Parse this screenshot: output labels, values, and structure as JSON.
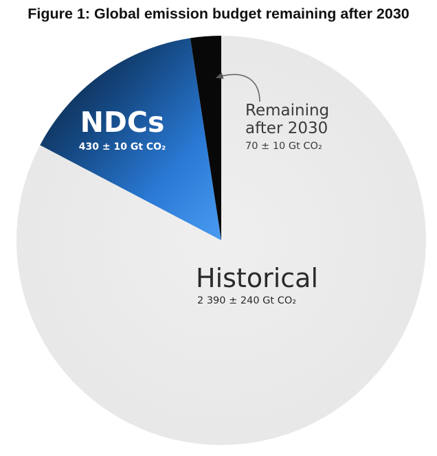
{
  "figure": {
    "title": "Figure 1: Global emission budget remaining after 2030"
  },
  "chart_data": {
    "type": "pie",
    "unit": "Gt CO2",
    "slices": [
      {
        "name": "Historical",
        "value": 2390,
        "uncertainty": 240,
        "value_label": "2 390 ± 240 Gt CO₂",
        "color": "#ebebeb"
      },
      {
        "name": "NDCs",
        "value": 430,
        "uncertainty": 10,
        "value_label": "430 ± 10 Gt CO₂",
        "color": "#1f6fc4"
      },
      {
        "name": "Remaining after 2030",
        "name_line1": "Remaining",
        "name_line2": "after 2030",
        "value": 70,
        "uncertainty": 10,
        "value_label": "70 ± 10 Gt CO₂",
        "color": "#080808"
      }
    ],
    "start": "top",
    "direction": "counterclockwise",
    "annotation_arrow": true
  }
}
